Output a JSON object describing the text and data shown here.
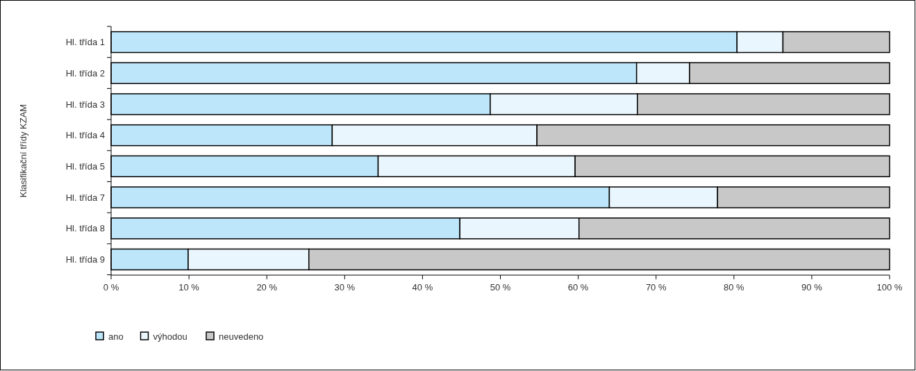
{
  "chart_data": {
    "type": "bar",
    "orientation": "horizontal",
    "stacked": true,
    "ylabel": "Klasifikační třídy KZAM",
    "categories": [
      "Hl. třída 1",
      "Hl. třída 2",
      "Hl. třída 3",
      "Hl. třída 4",
      "Hl. třída 5",
      "Hl. třída 7",
      "Hl. třída 8",
      "Hl. třída 9"
    ],
    "series": [
      {
        "name": "ano",
        "color": "#bde6fa",
        "values": [
          80.4,
          67.5,
          48.7,
          28.4,
          34.3,
          64.0,
          44.8,
          9.9
        ]
      },
      {
        "name": "výhodou",
        "color": "#eaf6fd",
        "values": [
          5.9,
          6.8,
          18.9,
          26.3,
          25.3,
          13.9,
          15.3,
          15.5
        ]
      },
      {
        "name": "neuvedeno",
        "color": "#c8c8c8",
        "values": [
          13.7,
          25.7,
          32.4,
          45.3,
          40.4,
          22.1,
          39.9,
          74.6
        ]
      }
    ],
    "xlim": [
      0,
      100
    ],
    "xticks": [
      {
        "value": 0,
        "label": "0 %"
      },
      {
        "value": 10,
        "label": "10 %"
      },
      {
        "value": 20,
        "label": "20 %"
      },
      {
        "value": 30,
        "label": "30 %"
      },
      {
        "value": 40,
        "label": "40 %"
      },
      {
        "value": 50,
        "label": "50 %"
      },
      {
        "value": 60,
        "label": "60 %"
      },
      {
        "value": 70,
        "label": "70 %"
      },
      {
        "value": 80,
        "label": "80 %"
      },
      {
        "value": 90,
        "label": "90 %"
      },
      {
        "value": 100,
        "label": "100 %"
      }
    ],
    "grid": false,
    "legend": "bottom left"
  }
}
